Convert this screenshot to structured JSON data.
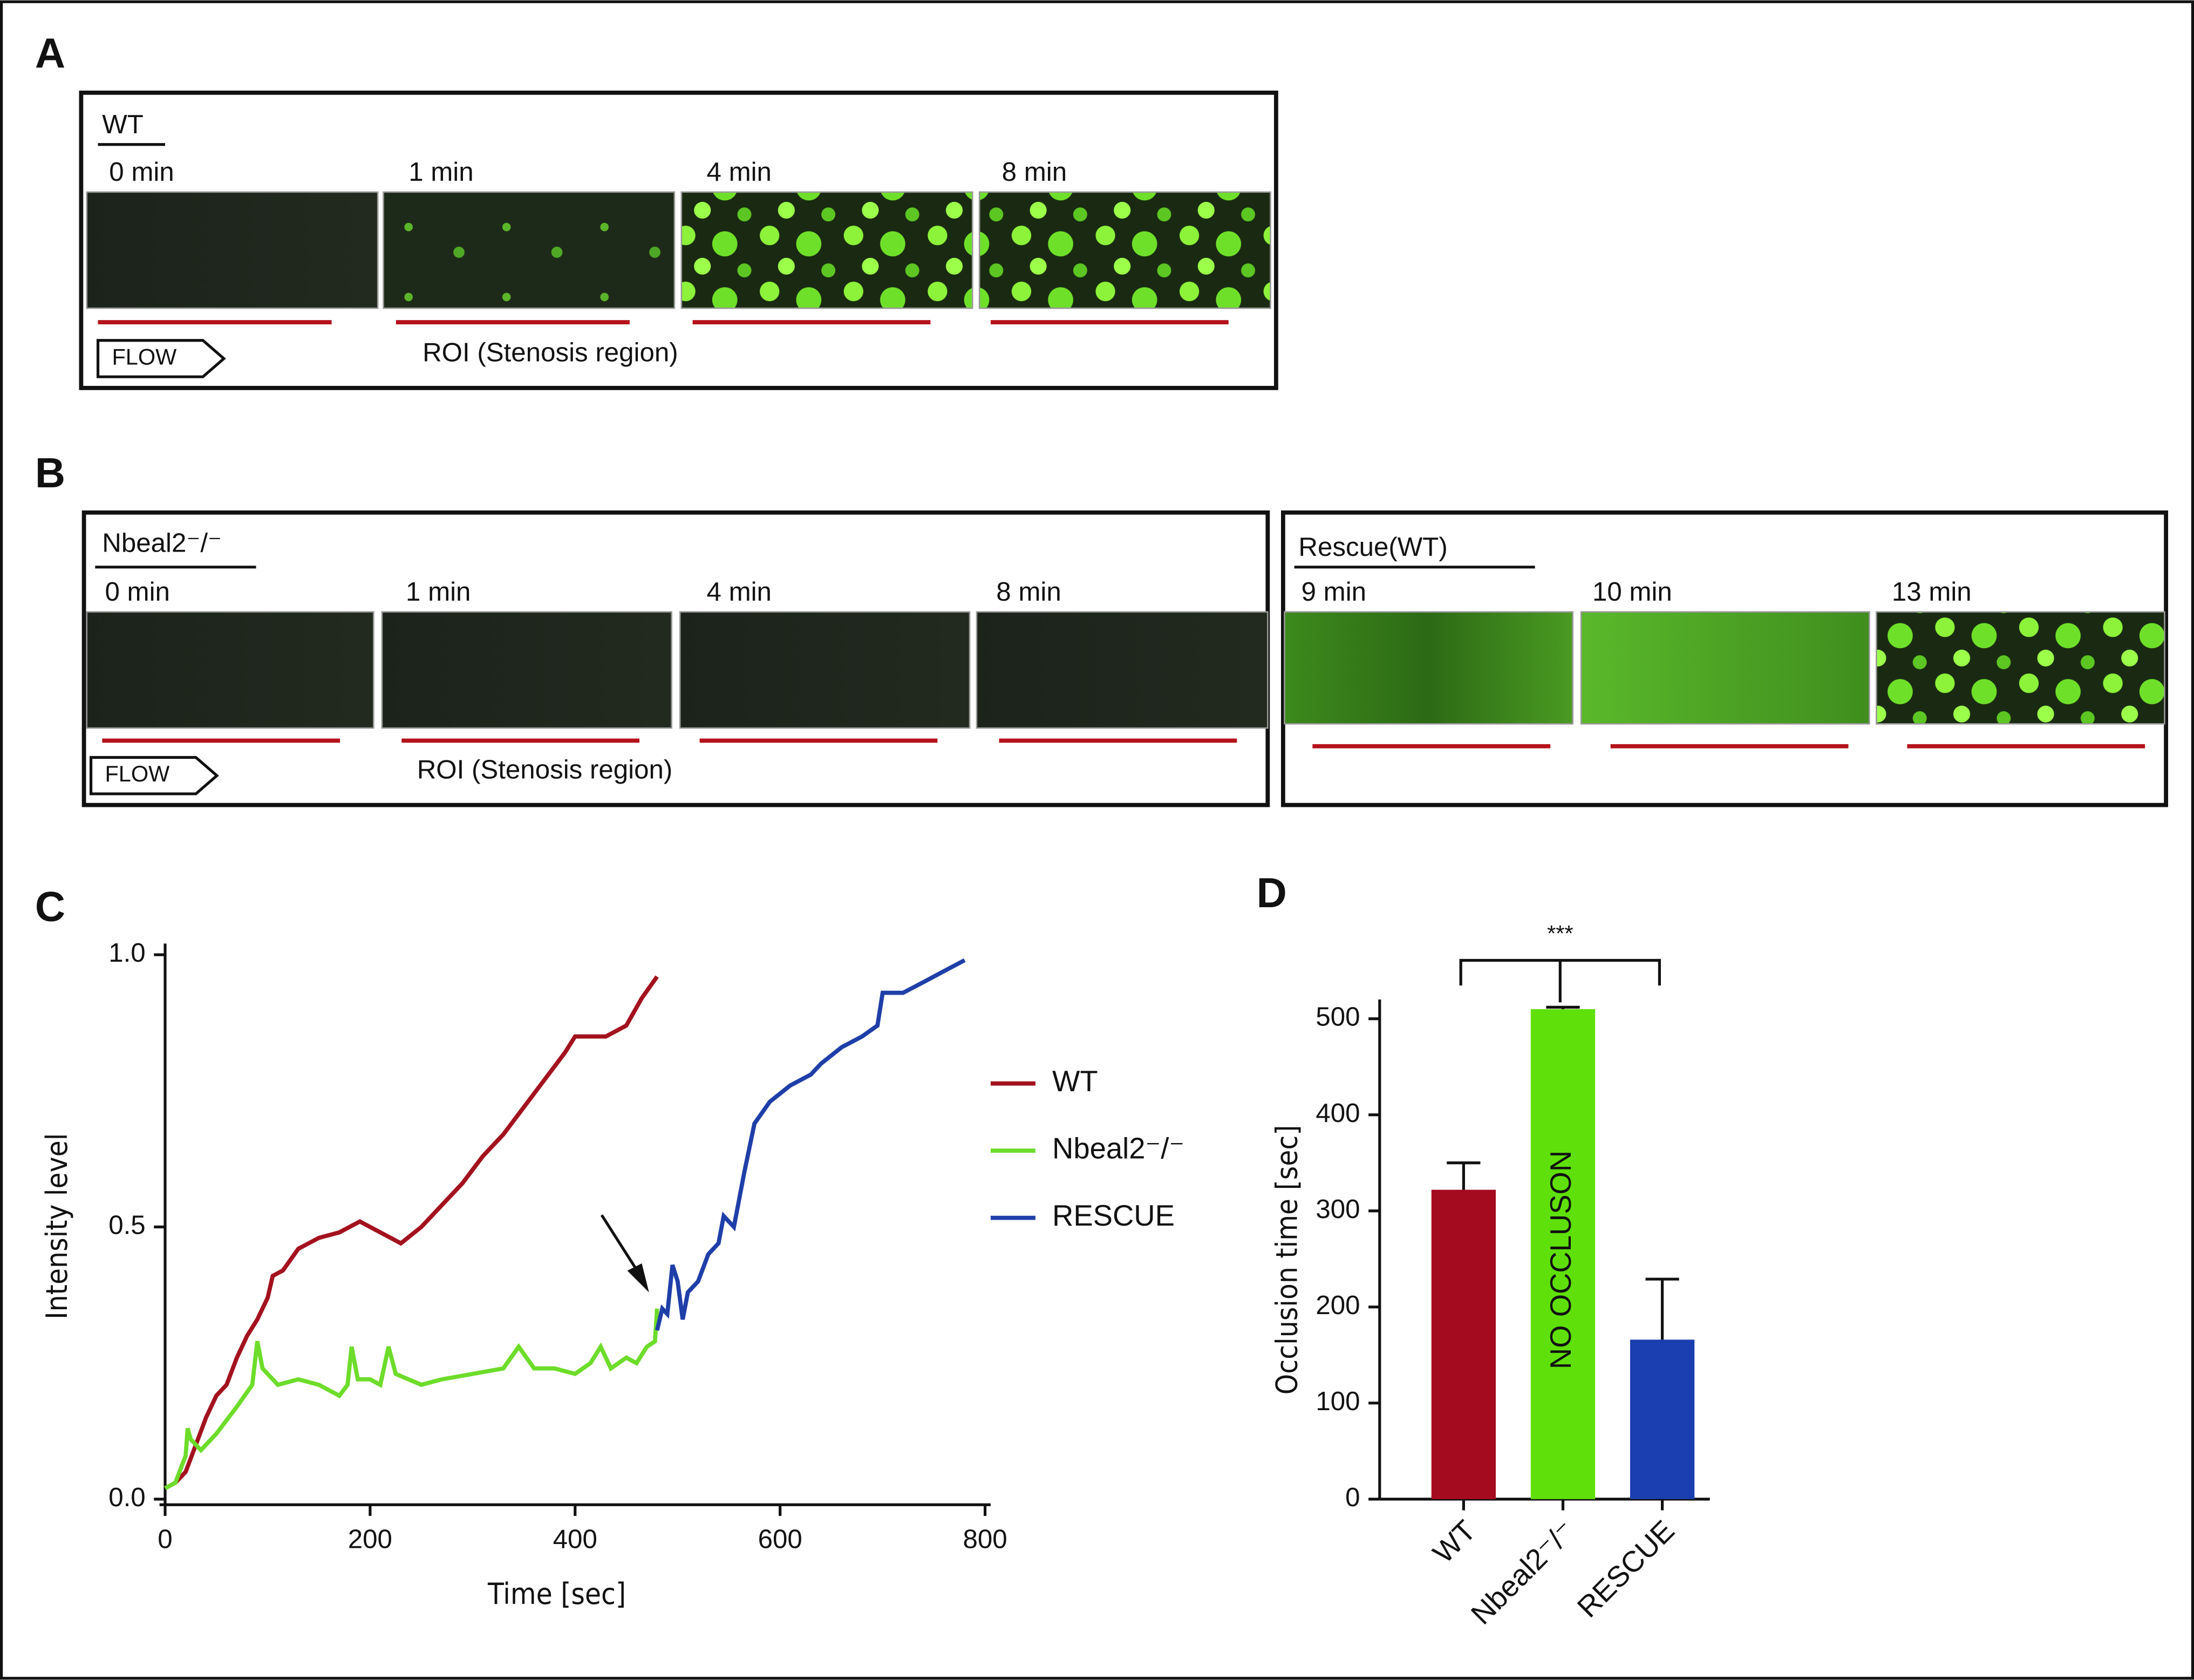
{
  "panels": {
    "a": {
      "label": "A",
      "group": "WT",
      "times": [
        "0 min",
        "1 min",
        "4 min",
        "8 min"
      ],
      "flow": "FLOW",
      "roi": "ROI (Stenosis region)"
    },
    "b": {
      "label": "B",
      "group": "Nbeal2⁻/⁻",
      "times": [
        "0 min",
        "1 min",
        "4 min",
        "8 min"
      ],
      "flow": "FLOW",
      "roi": "ROI (Stenosis region)",
      "rescue_group": "Rescue(WT)",
      "rescue_times": [
        "9 min",
        "10 min",
        "13 min"
      ]
    },
    "c": {
      "label": "C"
    },
    "d": {
      "label": "D"
    }
  },
  "chart_data": [
    {
      "type": "line",
      "xlabel": "Time [sec]",
      "ylabel": "Intensity level",
      "xlim": [
        0,
        800
      ],
      "ylim": [
        0,
        1
      ],
      "xticks": [
        0,
        200,
        400,
        600,
        800
      ],
      "yticks": [
        {
          "value": 0,
          "label": "0.0"
        },
        0.5,
        {
          "value": 1,
          "label": "1.0"
        }
      ],
      "series": [
        {
          "name": "WT",
          "color": "#a3121e",
          "x": [
            0,
            10,
            20,
            30,
            40,
            50,
            60,
            70,
            80,
            90,
            100,
            105,
            115,
            130,
            150,
            170,
            190,
            210,
            230,
            250,
            270,
            290,
            310,
            330,
            350,
            370,
            390,
            400,
            430,
            450,
            465,
            480
          ],
          "values": [
            0.02,
            0.03,
            0.05,
            0.1,
            0.15,
            0.19,
            0.21,
            0.26,
            0.3,
            0.33,
            0.37,
            0.41,
            0.42,
            0.46,
            0.48,
            0.49,
            0.51,
            0.49,
            0.47,
            0.5,
            0.54,
            0.58,
            0.63,
            0.67,
            0.72,
            0.77,
            0.82,
            0.85,
            0.85,
            0.87,
            0.92,
            0.96
          ]
        },
        {
          "name": "Nbeal2⁻/⁻",
          "color": "#6ddc2a",
          "x": [
            0,
            10,
            20,
            22,
            25,
            35,
            50,
            70,
            85,
            90,
            95,
            110,
            130,
            150,
            170,
            178,
            182,
            188,
            200,
            210,
            218,
            225,
            250,
            270,
            300,
            330,
            345,
            360,
            380,
            400,
            415,
            425,
            435,
            450,
            460,
            470,
            478,
            480
          ],
          "values": [
            0.02,
            0.03,
            0.08,
            0.13,
            0.11,
            0.09,
            0.12,
            0.17,
            0.21,
            0.29,
            0.24,
            0.21,
            0.22,
            0.21,
            0.19,
            0.21,
            0.28,
            0.22,
            0.22,
            0.21,
            0.28,
            0.23,
            0.21,
            0.22,
            0.23,
            0.24,
            0.28,
            0.24,
            0.24,
            0.23,
            0.25,
            0.28,
            0.24,
            0.26,
            0.25,
            0.28,
            0.29,
            0.35
          ]
        },
        {
          "name": "RESCUE",
          "color": "#1f3fa8",
          "x": [
            480,
            485,
            490,
            495,
            500,
            505,
            510,
            520,
            530,
            540,
            545,
            555,
            565,
            575,
            590,
            610,
            620,
            630,
            640,
            660,
            680,
            695,
            700,
            720,
            740,
            760,
            780
          ],
          "values": [
            0.31,
            0.35,
            0.34,
            0.43,
            0.4,
            0.33,
            0.38,
            0.4,
            0.45,
            0.47,
            0.52,
            0.5,
            0.6,
            0.69,
            0.73,
            0.76,
            0.77,
            0.78,
            0.8,
            0.83,
            0.85,
            0.87,
            0.93,
            0.93,
            0.95,
            0.97,
            0.99
          ]
        }
      ]
    },
    {
      "type": "bar",
      "ylabel": "Occlusion time [sec]",
      "categories": [
        "WT",
        "Nbeal2⁻/⁻",
        "RESCUE"
      ],
      "values": [
        322,
        510,
        166
      ],
      "errors": [
        28,
        2,
        63
      ],
      "colors": [
        "#a50b1f",
        "#5fe00a",
        "#1b3fb0"
      ],
      "ylim": [
        0,
        520
      ],
      "yticks": [
        0,
        100,
        200,
        300,
        400,
        500
      ],
      "annotations": [
        "NO OCCLUSON",
        "***"
      ]
    }
  ]
}
